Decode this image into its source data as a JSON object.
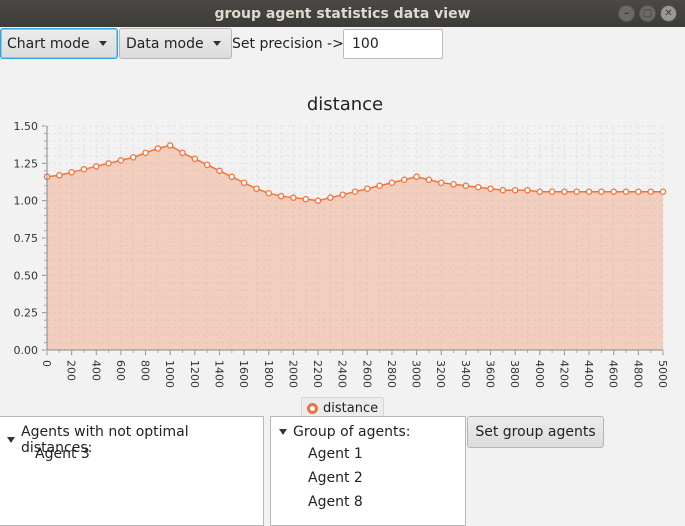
{
  "window": {
    "title": "group agent statistics data view"
  },
  "toolbar": {
    "chart_mode": "Chart mode",
    "data_mode": "Data mode",
    "precision_label": "Set precision ->",
    "precision_value": "100"
  },
  "chart_data": {
    "type": "area",
    "title": "distance",
    "xlabel": "",
    "ylabel": "",
    "xlim": [
      0,
      5000
    ],
    "ylim": [
      0,
      1.5
    ],
    "y_ticks": [
      "0.00",
      "0.25",
      "0.50",
      "0.75",
      "1.00",
      "1.25",
      "1.50"
    ],
    "x_ticks": [
      "0",
      "200",
      "400",
      "600",
      "800",
      "1000",
      "1200",
      "1400",
      "1600",
      "1800",
      "2000",
      "2200",
      "2400",
      "2600",
      "2800",
      "3000",
      "3200",
      "3400",
      "3600",
      "3800",
      "4000",
      "4200",
      "4400",
      "4600",
      "4800",
      "5000"
    ],
    "grid": true,
    "legend": "bottom",
    "color": "#f4723a",
    "series": [
      {
        "name": "distance",
        "x": [
          0,
          100,
          200,
          300,
          400,
          500,
          600,
          700,
          800,
          900,
          1000,
          1100,
          1200,
          1300,
          1400,
          1500,
          1600,
          1700,
          1800,
          1900,
          2000,
          2100,
          2200,
          2300,
          2400,
          2500,
          2600,
          2700,
          2800,
          2900,
          3000,
          3100,
          3200,
          3300,
          3400,
          3500,
          3600,
          3700,
          3800,
          3900,
          4000,
          4100,
          4200,
          4300,
          4400,
          4500,
          4600,
          4700,
          4800,
          4900,
          5000
        ],
        "values": [
          1.16,
          1.17,
          1.19,
          1.21,
          1.23,
          1.25,
          1.27,
          1.29,
          1.32,
          1.35,
          1.37,
          1.32,
          1.28,
          1.24,
          1.2,
          1.16,
          1.12,
          1.08,
          1.05,
          1.03,
          1.02,
          1.01,
          1.0,
          1.02,
          1.04,
          1.06,
          1.08,
          1.1,
          1.12,
          1.14,
          1.16,
          1.14,
          1.12,
          1.11,
          1.1,
          1.09,
          1.08,
          1.07,
          1.07,
          1.07,
          1.06,
          1.06,
          1.06,
          1.06,
          1.06,
          1.06,
          1.06,
          1.06,
          1.06,
          1.06,
          1.06
        ]
      }
    ]
  },
  "left_panel": {
    "root_label": "Agents with not optimal distances:",
    "items": [
      "Agent 3"
    ]
  },
  "right_panel": {
    "root_label": "Group of agents:",
    "items": [
      "Agent 1",
      "Agent 2",
      "Agent 8"
    ]
  },
  "actions": {
    "set_group_label": "Set group agents"
  }
}
